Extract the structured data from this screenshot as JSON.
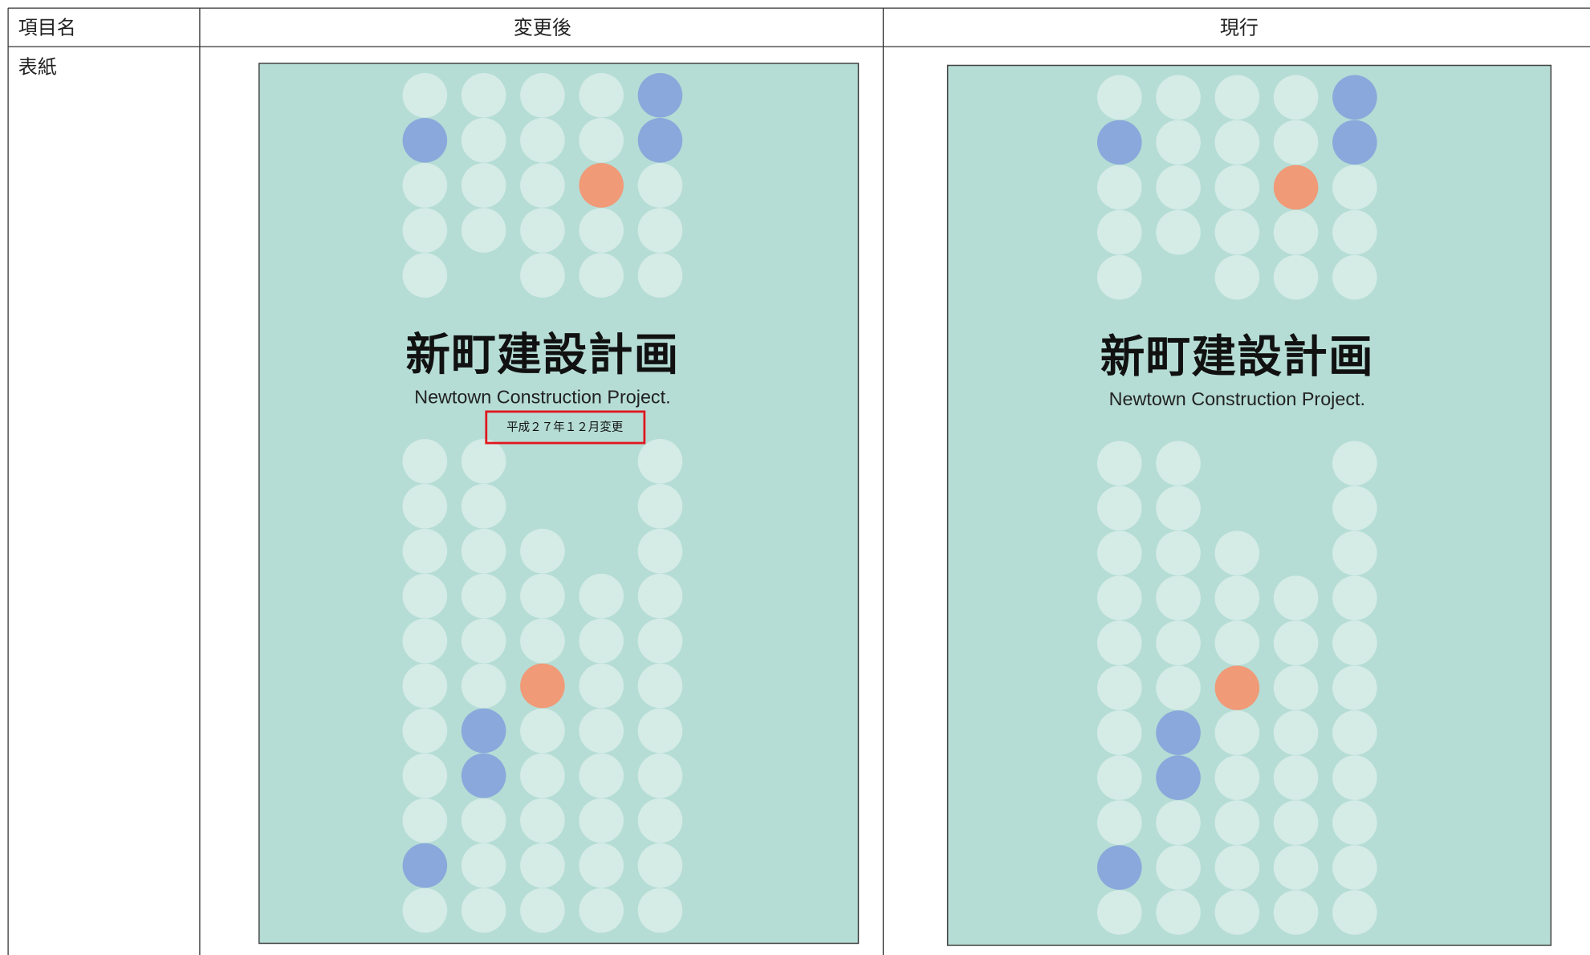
{
  "table": {
    "header": [
      "項目名",
      "変更後",
      "現行"
    ],
    "rows": [
      {
        "label": "表紙",
        "revised": {
          "title": "新町建設計画",
          "subtitle": "Newtown Construction Project.",
          "note": "平成２７年１２月変更"
        },
        "current": {
          "title": "新町建設計画",
          "subtitle": "Newtown Construction Project."
        }
      }
    ]
  }
}
